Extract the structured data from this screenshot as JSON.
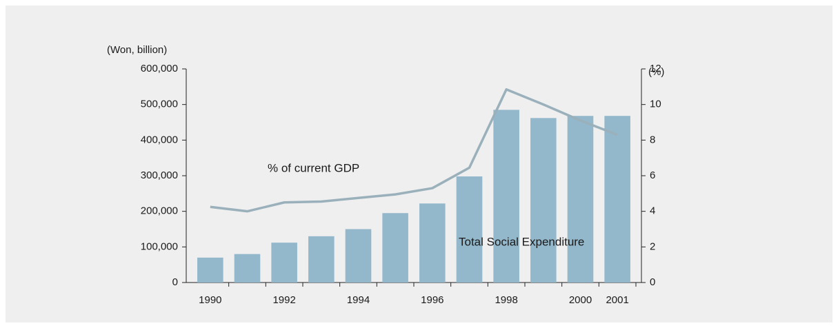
{
  "chart_data": {
    "type": "bar-line",
    "categories": [
      "1990",
      null,
      "1992",
      null,
      "1994",
      null,
      "1996",
      null,
      "1998",
      null,
      "2000",
      "2001"
    ],
    "y_label": "(Won, billion)",
    "y2_label": "(%)",
    "series": [
      {
        "name": "Total Social Expenditure",
        "type": "bar",
        "color": "#93b8cb",
        "values": [
          70000,
          80000,
          112000,
          130000,
          150000,
          195000,
          222000,
          298000,
          485000,
          462000,
          468000,
          468000
        ]
      },
      {
        "name": "% of current GDP",
        "type": "line",
        "axis": "y2",
        "color": "#9ab0bb",
        "values": [
          4.25,
          4.0,
          4.5,
          4.55,
          4.75,
          4.95,
          5.3,
          6.45,
          10.85,
          10.0,
          9.1,
          8.3
        ]
      }
    ],
    "ylim": [
      0,
      600000
    ],
    "yticks": [
      0,
      {
        "value": 100000,
        "label": "100,000"
      },
      {
        "value": 200000,
        "label": "200,000"
      },
      {
        "value": 300000,
        "label": "300,000"
      },
      {
        "value": 400000,
        "label": "400,000"
      },
      {
        "value": 500000,
        "label": "500,000"
      },
      {
        "value": 600000,
        "label": "600,000"
      }
    ],
    "y2lim": [
      0,
      12
    ],
    "y2ticks": [
      0,
      2,
      4,
      6,
      8,
      10,
      12
    ]
  }
}
